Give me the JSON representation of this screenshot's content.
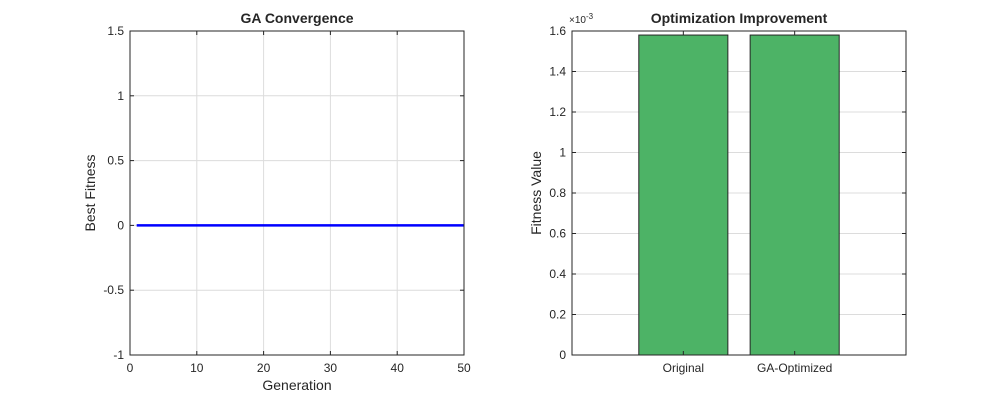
{
  "chart_data": [
    {
      "type": "line",
      "title": "GA Convergence",
      "xlabel": "Generation",
      "ylabel": "Best Fitness",
      "xlim": [
        0,
        50
      ],
      "ylim": [
        -1,
        1.5
      ],
      "xticks": [
        "0",
        "10",
        "20",
        "30",
        "40",
        "50"
      ],
      "yticks": [
        "-1",
        "-0.5",
        "0",
        "0.5",
        "1",
        "1.5"
      ],
      "grid": true,
      "series_color": "#0000ff",
      "series": [
        {
          "x": [
            1,
            50
          ],
          "y": [
            0,
            0
          ]
        }
      ]
    },
    {
      "type": "bar",
      "title": "Optimization Improvement",
      "xlabel": "",
      "ylabel": "Fitness Value",
      "exponent_label": "×10",
      "exponent_power": "-3",
      "ylim": [
        0,
        1.6
      ],
      "yticks": [
        "0",
        "0.2",
        "0.4",
        "0.6",
        "0.8",
        "1",
        "1.2",
        "1.4",
        "1.6"
      ],
      "grid": true,
      "bar_color": "#4db366",
      "categories": [
        "Original",
        "GA-Optimized"
      ],
      "values": [
        1.58,
        1.58
      ]
    }
  ]
}
